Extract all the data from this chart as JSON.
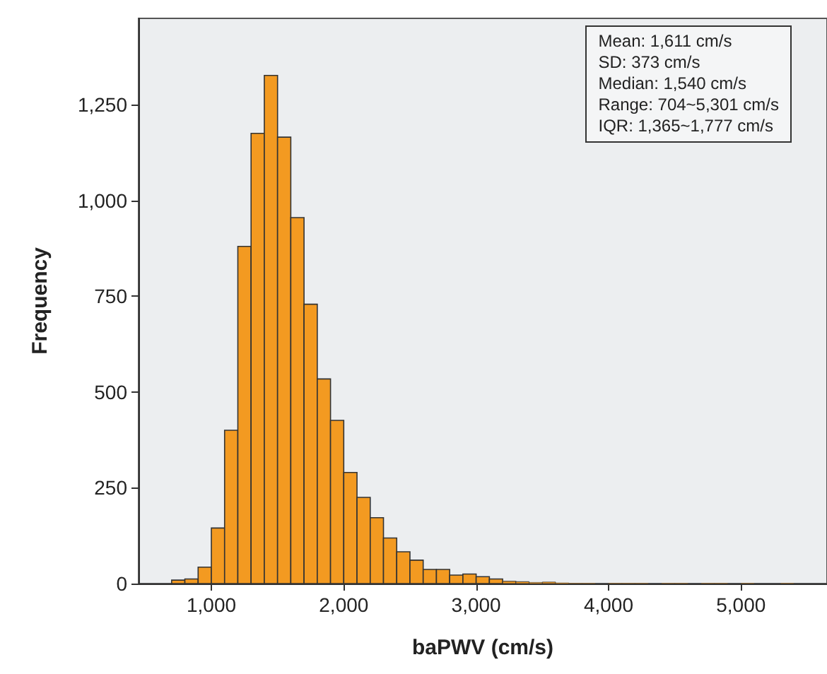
{
  "chart_data": {
    "type": "histogram",
    "xlabel": "baPWV (cm/s)",
    "ylabel": "Frequency",
    "bins": [
      700,
      800,
      900,
      1000,
      1100,
      1200,
      1300,
      1400,
      1500,
      1600,
      1700,
      1800,
      1900,
      2000,
      2100,
      2200,
      2300,
      2400,
      2500,
      2600,
      2700,
      2800,
      2900,
      3000,
      3100,
      3200,
      3300,
      3400,
      3500,
      3600,
      3700,
      3800,
      3900,
      4000,
      4100,
      4200,
      4300,
      4400,
      4500,
      4600,
      4700,
      4800,
      4900,
      5000,
      5100,
      5200,
      5300,
      5400
    ],
    "values": [
      9,
      12,
      43,
      145,
      400,
      880,
      1175,
      1326,
      1165,
      955,
      729,
      534,
      426,
      290,
      225,
      172,
      119,
      83,
      61,
      37,
      37,
      22,
      25,
      18,
      12,
      6,
      5,
      3,
      4,
      2,
      1,
      1,
      0,
      1,
      1,
      1,
      0,
      1,
      1,
      0,
      1,
      1,
      0,
      1,
      0,
      0,
      1
    ],
    "color": "#f39a21",
    "xlim": [
      450,
      5650
    ],
    "xticks": [
      {
        "value": 1000,
        "label": "1,000"
      },
      {
        "value": 2000,
        "label": "2,000"
      },
      {
        "value": 3000,
        "label": "3,000"
      },
      {
        "value": 4000,
        "label": "4,000"
      },
      {
        "value": 5000,
        "label": "5,000"
      }
    ],
    "ylim": [
      0,
      1475
    ],
    "yticks": [
      0,
      250,
      500,
      750,
      {
        "value": 1000,
        "label": "1,000"
      },
      {
        "value": 1250,
        "label": "1,250"
      }
    ],
    "grid": false,
    "annotations": [
      "Mean: 1,611 cm/s",
      "SD: 373 cm/s",
      "Median: 1,540 cm/s",
      "Range: 704~5,301 cm/s",
      "IQR: 1,365~1,777 cm/s"
    ]
  }
}
